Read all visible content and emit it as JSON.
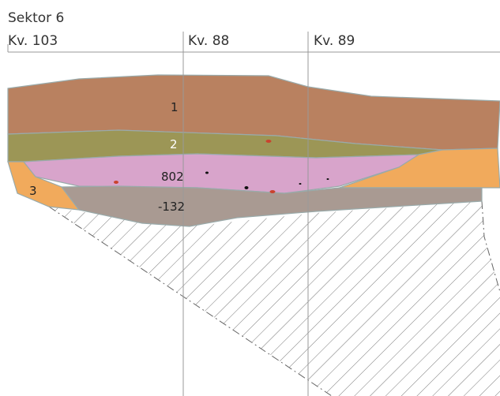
{
  "title": "Sektor 6",
  "columns": [
    "Kv. 103",
    "Kv. 88",
    "Kv. 89"
  ],
  "layers": [
    "1",
    "2",
    "802",
    "-132",
    "3"
  ]
}
